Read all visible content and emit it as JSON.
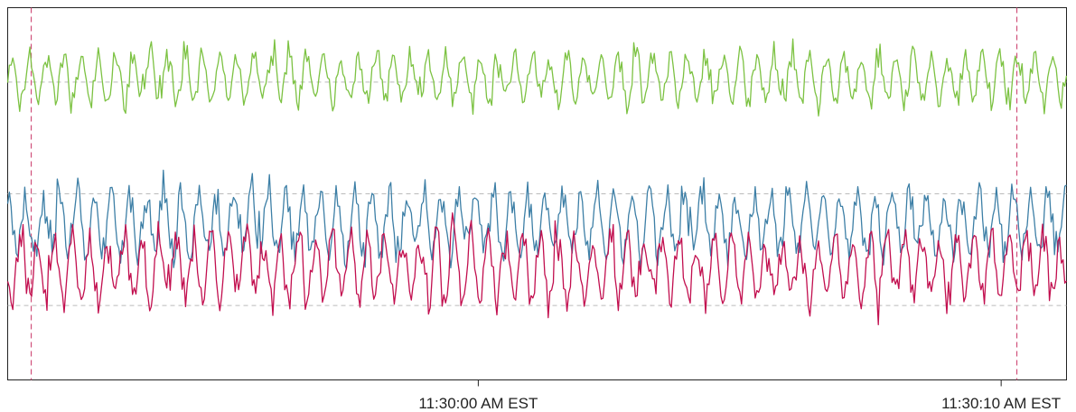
{
  "chart_data": {
    "type": "line",
    "title": "",
    "xlabel": "",
    "ylabel": "",
    "x_ticks": [
      {
        "label": "11:30:00 AM EST",
        "t": 0
      },
      {
        "label": "11:30:10 AM EST",
        "t": 10
      }
    ],
    "x_range": [
      -9.0,
      11.25
    ],
    "y_range": [
      0,
      1
    ],
    "grid": {
      "horizontal_dashed": [
        0.2,
        0.5,
        0.8
      ],
      "color": "#bbbbbb"
    },
    "markers": {
      "times": [
        -8.55,
        10.3
      ],
      "color": "#d0507a"
    },
    "legend": "none",
    "sample_count": 620,
    "series": [
      {
        "color": "#7cc242",
        "baseline": 0.81,
        "amplitude": 0.065,
        "seed": 11,
        "phase": 0.0
      },
      {
        "color": "#3d7fa6",
        "baseline": 0.42,
        "amplitude": 0.085,
        "seed": 23,
        "phase": 1.4
      },
      {
        "color": "#c20f4f",
        "baseline": 0.3,
        "amplitude": 0.09,
        "seed": 37,
        "phase": 3.2
      }
    ]
  }
}
